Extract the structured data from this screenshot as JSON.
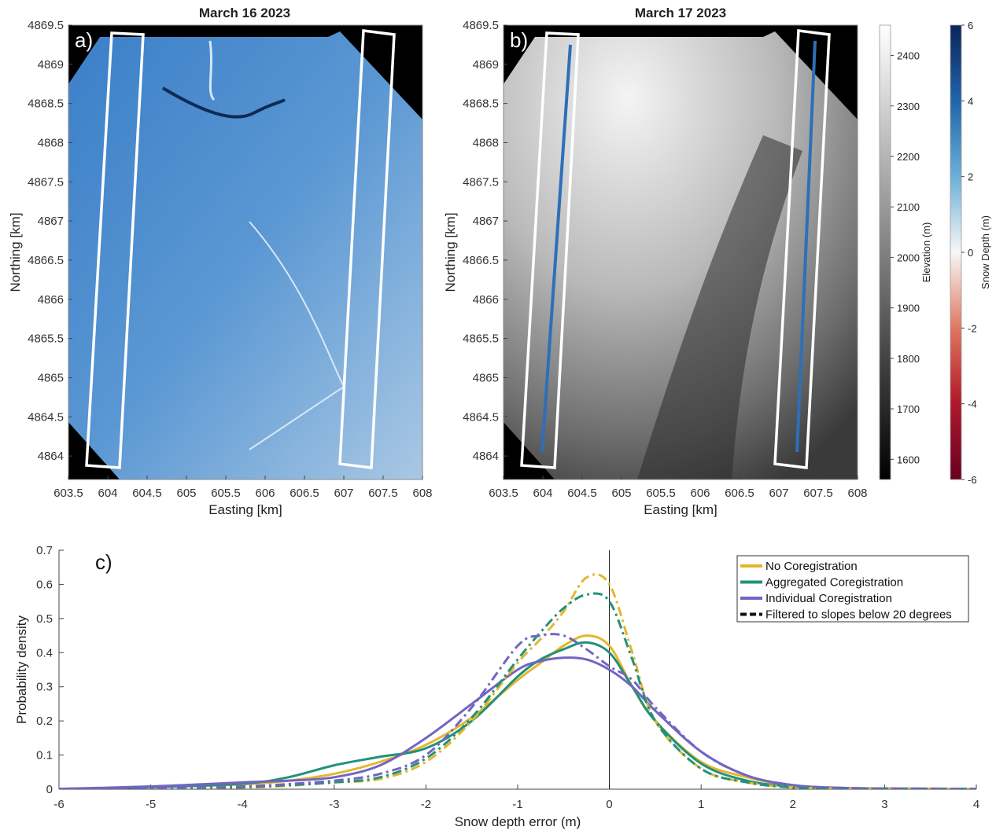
{
  "chart_data": [
    {
      "panel": "a)",
      "type": "heatmap",
      "title": "March 16 2023",
      "xlabel": "Easting [km]",
      "ylabel": "Northing [km]",
      "xlim": [
        603.5,
        608
      ],
      "ylim": [
        4863.7,
        4869.5
      ],
      "xticks": [
        "603.5",
        "604",
        "604.5",
        "605",
        "605.5",
        "606",
        "606.5",
        "607",
        "607.5",
        "608"
      ],
      "yticks": [
        "4864",
        "4864.5",
        "4865",
        "4865.5",
        "4866",
        "4866.5",
        "4867",
        "4867.5",
        "4868",
        "4868.5",
        "4869",
        "4869.5"
      ],
      "colormap": "snow depth (blue scale)",
      "boxes": 2
    },
    {
      "panel": "b)",
      "type": "heatmap",
      "title": "March 17 2023",
      "xlabel": "Easting [km]",
      "ylabel": "Northing [km]",
      "xlim": [
        603.5,
        608
      ],
      "ylim": [
        4863.7,
        4869.5
      ],
      "xticks": [
        "603.5",
        "604",
        "604.5",
        "605",
        "605.5",
        "606",
        "606.5",
        "607",
        "607.5",
        "608"
      ],
      "yticks": [
        "4864",
        "4864.5",
        "4865",
        "4865.5",
        "4866",
        "4866.5",
        "4867",
        "4867.5",
        "4868",
        "4868.5",
        "4869",
        "4869.5"
      ],
      "colormap": "elevation (gray)",
      "colorbars": [
        {
          "label": "Elevation (m)",
          "ticks": [
            "1600",
            "1700",
            "1800",
            "1900",
            "2000",
            "2100",
            "2200",
            "2300",
            "2400"
          ],
          "range": [
            1560,
            2460
          ]
        },
        {
          "label": "Snow Depth (m)",
          "ticks": [
            "-6",
            "-4",
            "-2",
            "0",
            "2",
            "4",
            "6"
          ],
          "range": [
            -6,
            6
          ]
        }
      ]
    },
    {
      "panel": "c)",
      "type": "line",
      "xlabel": "Snow depth error (m)",
      "ylabel": "Probability density",
      "xlim": [
        -6,
        4
      ],
      "ylim": [
        0,
        0.7
      ],
      "xticks": [
        "-6",
        "-5",
        "-4",
        "-3",
        "-2",
        "-1",
        "0",
        "1",
        "2",
        "3",
        "4"
      ],
      "yticks": [
        "0",
        "0.1",
        "0.2",
        "0.3",
        "0.4",
        "0.5",
        "0.6",
        "0.7"
      ],
      "legend_position": "top-right",
      "legend": [
        "No Coregistration",
        "Aggregated Coregistration",
        "Individual Coregistration",
        "Filtered to slopes below 20 degrees"
      ],
      "colors": {
        "no_coreg": "#e3b72b",
        "aggregated": "#23917a",
        "individual": "#7265c2",
        "filtered": "#111111"
      },
      "x": [
        -6,
        -5,
        -4,
        -3.5,
        -3,
        -2.5,
        -2,
        -1.5,
        -1,
        -0.75,
        -0.5,
        -0.25,
        0,
        0.25,
        0.5,
        1,
        1.5,
        2,
        2.5,
        3,
        4
      ],
      "series": [
        {
          "name": "No Coregistration",
          "style": "solid",
          "values": [
            0.001,
            0.006,
            0.014,
            0.025,
            0.045,
            0.08,
            0.13,
            0.21,
            0.32,
            0.37,
            0.42,
            0.45,
            0.42,
            0.3,
            0.2,
            0.08,
            0.035,
            0.01,
            0.004,
            0.002,
            0.001
          ]
        },
        {
          "name": "Aggregated Coregistration",
          "style": "solid",
          "values": [
            0.001,
            0.006,
            0.016,
            0.035,
            0.07,
            0.095,
            0.12,
            0.2,
            0.33,
            0.38,
            0.41,
            0.43,
            0.4,
            0.3,
            0.2,
            0.075,
            0.025,
            0.008,
            0.003,
            0.001,
            0.001
          ]
        },
        {
          "name": "Individual Coregistration",
          "style": "solid",
          "values": [
            0.001,
            0.008,
            0.02,
            0.025,
            0.035,
            0.07,
            0.15,
            0.25,
            0.35,
            0.375,
            0.385,
            0.38,
            0.35,
            0.3,
            0.23,
            0.11,
            0.04,
            0.012,
            0.004,
            0.002,
            0.001
          ]
        },
        {
          "name": "No Coregistration (filtered)",
          "style": "dash-dot",
          "values": [
            0.001,
            0.002,
            0.005,
            0.01,
            0.02,
            0.03,
            0.08,
            0.2,
            0.37,
            0.44,
            0.52,
            0.62,
            0.6,
            0.4,
            0.2,
            0.06,
            0.02,
            0.006,
            0.002,
            0.001,
            0.001
          ]
        },
        {
          "name": "Aggregated Coregistration (filtered)",
          "style": "dash-dot",
          "values": [
            0.001,
            0.002,
            0.006,
            0.012,
            0.02,
            0.035,
            0.09,
            0.21,
            0.38,
            0.46,
            0.53,
            0.57,
            0.55,
            0.38,
            0.2,
            0.06,
            0.02,
            0.005,
            0.002,
            0.001,
            0.001
          ]
        },
        {
          "name": "Individual Coregistration (filtered)",
          "style": "dash-dot",
          "values": [
            0.001,
            0.003,
            0.008,
            0.015,
            0.025,
            0.045,
            0.1,
            0.24,
            0.42,
            0.45,
            0.45,
            0.41,
            0.36,
            0.32,
            0.24,
            0.11,
            0.04,
            0.012,
            0.004,
            0.002,
            0.001
          ]
        }
      ],
      "vline_x": 0
    }
  ]
}
